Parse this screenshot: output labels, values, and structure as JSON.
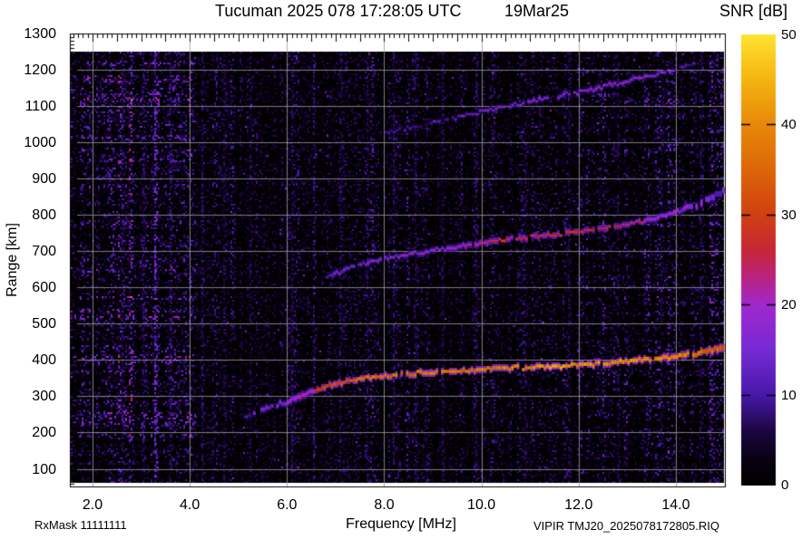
{
  "header": {
    "title_left": "Tucuman 2025 078 17:28:05 UTC",
    "title_right": "19Mar25"
  },
  "footer": {
    "rxmask": "RxMask 11111111",
    "source": "VIPIR  TMJ20_2025078172805.RIQ"
  },
  "colorbar": {
    "label": "SNR [dB]",
    "min": 0,
    "max": 50,
    "ticks": [
      0,
      10,
      20,
      30,
      40,
      50
    ],
    "tick_labels": [
      "0",
      "10",
      "20",
      "30",
      "40",
      "50"
    ]
  },
  "chart_data": {
    "type": "heatmap",
    "title": "Tucuman 2025 078 17:28:05 UTC 19Mar25",
    "xlabel": "Frequency [MHz]",
    "ylabel": "Range [km]",
    "zlabel": "SNR [dB]",
    "xlim": [
      1.5,
      15.0
    ],
    "ylim": [
      50,
      1300
    ],
    "data_range_max_km": 1250,
    "grid": true,
    "plot_bg": "#000000",
    "page_bg": "#ffffff",
    "gridline_color": "#9b9b9b",
    "xticks": [
      2.0,
      4.0,
      6.0,
      8.0,
      10.0,
      12.0,
      14.0
    ],
    "xtick_labels": [
      "2.0",
      "4.0",
      "6.0",
      "8.0",
      "10.0",
      "12.0",
      "14.0"
    ],
    "yticks": [
      100,
      200,
      300,
      400,
      500,
      600,
      700,
      800,
      900,
      1000,
      1100,
      1200,
      1300
    ],
    "ytick_labels": [
      "100",
      "200",
      "300",
      "400",
      "500",
      "600",
      "700",
      "800",
      "900",
      "1000",
      "1100",
      "1200",
      "1300"
    ],
    "colormap_stops": [
      [
        0,
        "#000000"
      ],
      [
        3,
        "#0a0114"
      ],
      [
        6,
        "#1c0640"
      ],
      [
        10,
        "#4818a8"
      ],
      [
        15,
        "#762ad4"
      ],
      [
        20,
        "#a028cd"
      ],
      [
        23,
        "#b92382"
      ],
      [
        26,
        "#c62637"
      ],
      [
        30,
        "#d04012"
      ],
      [
        35,
        "#dc6608"
      ],
      [
        40,
        "#e8880a"
      ],
      [
        45,
        "#f4b410"
      ],
      [
        50,
        "#ffe232"
      ]
    ],
    "echo_traces": [
      {
        "name": "F-region first hop",
        "points_f_km_snr_spread": [
          [
            5.1,
            246,
            10,
            8
          ],
          [
            5.5,
            262,
            13,
            10
          ],
          [
            6.0,
            286,
            17,
            12
          ],
          [
            6.3,
            302,
            20,
            12
          ],
          [
            6.6,
            318,
            26,
            11
          ],
          [
            6.9,
            333,
            31,
            10
          ],
          [
            7.2,
            341,
            33,
            9
          ],
          [
            7.6,
            349,
            35,
            9
          ],
          [
            8.0,
            356,
            36,
            9
          ],
          [
            8.5,
            361,
            37,
            9
          ],
          [
            9.0,
            366,
            38,
            9
          ],
          [
            9.5,
            370,
            37,
            9
          ],
          [
            10.0,
            374,
            39,
            9
          ],
          [
            10.5,
            377,
            40,
            9
          ],
          [
            11.0,
            379,
            40,
            9
          ],
          [
            11.5,
            382,
            41,
            9
          ],
          [
            12.0,
            386,
            40,
            9
          ],
          [
            12.5,
            390,
            40,
            10
          ],
          [
            13.0,
            396,
            40,
            10
          ],
          [
            13.5,
            402,
            39,
            11
          ],
          [
            14.0,
            409,
            38,
            12
          ],
          [
            14.5,
            420,
            36,
            13
          ],
          [
            15.0,
            433,
            33,
            14
          ]
        ]
      },
      {
        "name": "second hop",
        "points_f_km_snr_spread": [
          [
            6.8,
            628,
            12,
            7
          ],
          [
            7.2,
            652,
            14,
            8
          ],
          [
            7.6,
            668,
            15,
            8
          ],
          [
            8.0,
            679,
            16,
            8
          ],
          [
            8.5,
            691,
            16,
            8
          ],
          [
            9.0,
            704,
            17,
            8
          ],
          [
            9.5,
            714,
            18,
            8
          ],
          [
            9.9,
            722,
            23,
            8
          ],
          [
            10.3,
            728,
            26,
            8
          ],
          [
            10.7,
            734,
            24,
            8
          ],
          [
            11.1,
            740,
            23,
            8
          ],
          [
            11.5,
            746,
            25,
            8
          ],
          [
            12.0,
            754,
            26,
            8
          ],
          [
            12.5,
            764,
            25,
            8
          ],
          [
            13.0,
            774,
            23,
            8
          ],
          [
            13.5,
            786,
            19,
            10
          ],
          [
            14.0,
            809,
            17,
            12
          ],
          [
            14.4,
            828,
            15,
            14
          ],
          [
            14.7,
            847,
            14,
            15
          ],
          [
            15.0,
            868,
            13,
            16
          ]
        ]
      },
      {
        "name": "third hop",
        "points_f_km_snr_spread": [
          [
            7.9,
            1024,
            8,
            6
          ],
          [
            8.4,
            1037,
            9,
            6
          ],
          [
            9.0,
            1054,
            10,
            6
          ],
          [
            9.5,
            1069,
            11,
            6
          ],
          [
            10.0,
            1084,
            13,
            7
          ],
          [
            10.5,
            1099,
            15,
            7
          ],
          [
            11.0,
            1114,
            16,
            7
          ],
          [
            11.5,
            1126,
            17,
            7
          ],
          [
            12.0,
            1139,
            17,
            7
          ],
          [
            12.5,
            1154,
            18,
            7
          ],
          [
            13.0,
            1169,
            18,
            7
          ],
          [
            13.5,
            1184,
            16,
            7
          ],
          [
            13.9,
            1199,
            14,
            6
          ],
          [
            14.4,
            1220,
            10,
            6
          ]
        ]
      }
    ],
    "interference_stripes": [
      {
        "freq_mhz": 3.29,
        "snr": 15
      },
      {
        "freq_mhz": 2.62,
        "snr": 8
      },
      {
        "freq_mhz": 3.05,
        "snr": 8
      },
      {
        "freq_mhz": 3.6,
        "snr": 8
      },
      {
        "freq_mhz": 4.25,
        "snr": 8
      },
      {
        "freq_mhz": 4.7,
        "snr": 7
      },
      {
        "freq_mhz": 5.25,
        "snr": 7
      },
      {
        "freq_mhz": 6.1,
        "snr": 8
      },
      {
        "freq_mhz": 6.55,
        "snr": 9
      },
      {
        "freq_mhz": 7.1,
        "snr": 7
      },
      {
        "freq_mhz": 7.65,
        "snr": 8
      },
      {
        "freq_mhz": 8.2,
        "snr": 8
      },
      {
        "freq_mhz": 8.65,
        "snr": 7
      },
      {
        "freq_mhz": 9.2,
        "snr": 7
      },
      {
        "freq_mhz": 9.9,
        "snr": 8
      },
      {
        "freq_mhz": 10.9,
        "snr": 7
      },
      {
        "freq_mhz": 11.8,
        "snr": 6
      },
      {
        "freq_mhz": 12.8,
        "snr": 7
      },
      {
        "freq_mhz": 13.7,
        "snr": 6
      },
      {
        "freq_mhz": 14.5,
        "snr": 7
      }
    ],
    "noise_floor_db": 5
  }
}
